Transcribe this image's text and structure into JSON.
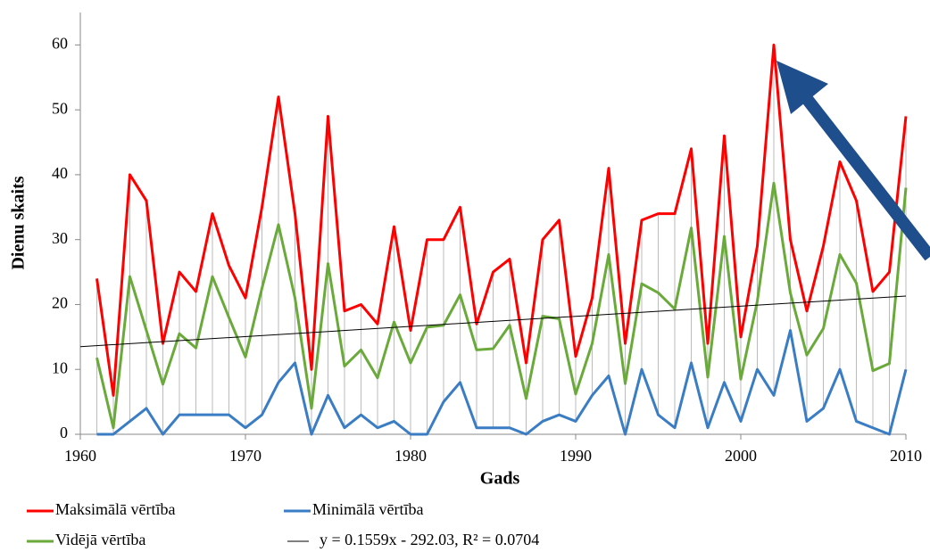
{
  "chart_data": {
    "type": "line",
    "x_label": "Gads",
    "y_label": "Dienu skaits",
    "x": [
      1961,
      1962,
      1963,
      1964,
      1965,
      1966,
      1967,
      1968,
      1969,
      1970,
      1971,
      1972,
      1973,
      1974,
      1975,
      1976,
      1977,
      1978,
      1979,
      1980,
      1981,
      1982,
      1983,
      1984,
      1985,
      1986,
      1987,
      1988,
      1989,
      1990,
      1991,
      1992,
      1993,
      1994,
      1995,
      1996,
      1997,
      1998,
      1999,
      2000,
      2001,
      2002,
      2003,
      2004,
      2005,
      2006,
      2007,
      2008,
      2009,
      2010
    ],
    "series": [
      {
        "name": "Maksimālā vērtība",
        "color": "#ff0000",
        "values": [
          24,
          6,
          40,
          36,
          14,
          25,
          22,
          34,
          26,
          21,
          35,
          52,
          34,
          10,
          49,
          19,
          20,
          17,
          32,
          16,
          30,
          30,
          35,
          17,
          25,
          27,
          11,
          30,
          33,
          12,
          21,
          41,
          14,
          33,
          34,
          34,
          44,
          14,
          46,
          15,
          29,
          60,
          30,
          19,
          29,
          42,
          36,
          22,
          25,
          49
        ]
      },
      {
        "name": "Minimālā vērtība",
        "color": "#3a7dc4",
        "values": [
          0,
          0,
          2,
          4,
          0,
          3,
          3,
          3,
          3,
          1,
          3,
          8,
          11,
          0,
          6,
          1,
          3,
          1,
          2,
          0,
          0,
          5,
          8,
          1,
          1,
          1,
          0,
          2,
          3,
          2,
          6,
          9,
          0,
          10,
          3,
          1,
          11,
          1,
          8,
          2,
          10,
          6,
          16,
          2,
          4,
          10,
          2,
          1,
          0,
          10
        ]
      },
      {
        "name": "Vidējā vērtība",
        "color": "#6aaa3a",
        "values": [
          11.8,
          1,
          24.3,
          16,
          7.7,
          15.5,
          13.3,
          24.3,
          18,
          11.9,
          22.5,
          32.3,
          21,
          4,
          26.3,
          10.5,
          13,
          8.7,
          17.3,
          11,
          16.5,
          16.8,
          21.5,
          13,
          13.2,
          16.8,
          5.5,
          18.2,
          17.8,
          6.2,
          14,
          27.7,
          7.8,
          23.2,
          21.8,
          19.3,
          31.8,
          8.8,
          30.5,
          8.5,
          20.5,
          38.7,
          21.8,
          12.2,
          16.3,
          27.7,
          23.3,
          9.8,
          10.9,
          38
        ]
      }
    ],
    "trend": {
      "name": "y = 0.1559x - 292.03, R² = 0.0704",
      "color": "#000000",
      "x": [
        1960,
        2010
      ],
      "values": [
        13.5,
        21.3
      ]
    },
    "xlim": [
      1960,
      2010
    ],
    "xticks": [
      1960,
      1970,
      1980,
      1990,
      2000,
      2010
    ],
    "ylim": [
      0,
      65
    ],
    "yticks": [
      0,
      10,
      20,
      30,
      40,
      50,
      60
    ]
  }
}
